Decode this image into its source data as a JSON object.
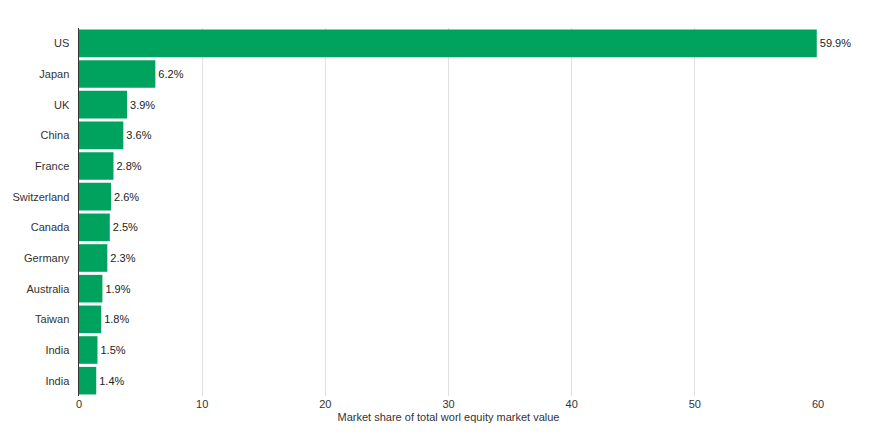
{
  "chart_data": {
    "type": "bar",
    "orientation": "horizontal",
    "x_label": "Market share of total worl equity market value",
    "categories": [
      "US",
      "Japan",
      "UK",
      "China",
      "France",
      "Switzerland",
      "Canada",
      "Germany",
      "Australia",
      "Taiwan",
      "India",
      "India"
    ],
    "values": [
      59.9,
      6.2,
      3.9,
      3.6,
      2.8,
      2.6,
      2.5,
      2.3,
      1.9,
      1.8,
      1.5,
      1.4
    ],
    "value_labels": [
      "59.9%",
      "6.2%",
      "3.9%",
      "3.6%",
      "2.8%",
      "2.6%",
      "2.5%",
      "2.3%",
      "1.9%",
      "1.8%",
      "1.5%",
      "1.4%"
    ],
    "color": "#00a35e",
    "xlim": [
      0,
      60
    ],
    "xticks": [
      0,
      10,
      20,
      30,
      40,
      50,
      60
    ],
    "grid": true,
    "data_labels": true
  }
}
